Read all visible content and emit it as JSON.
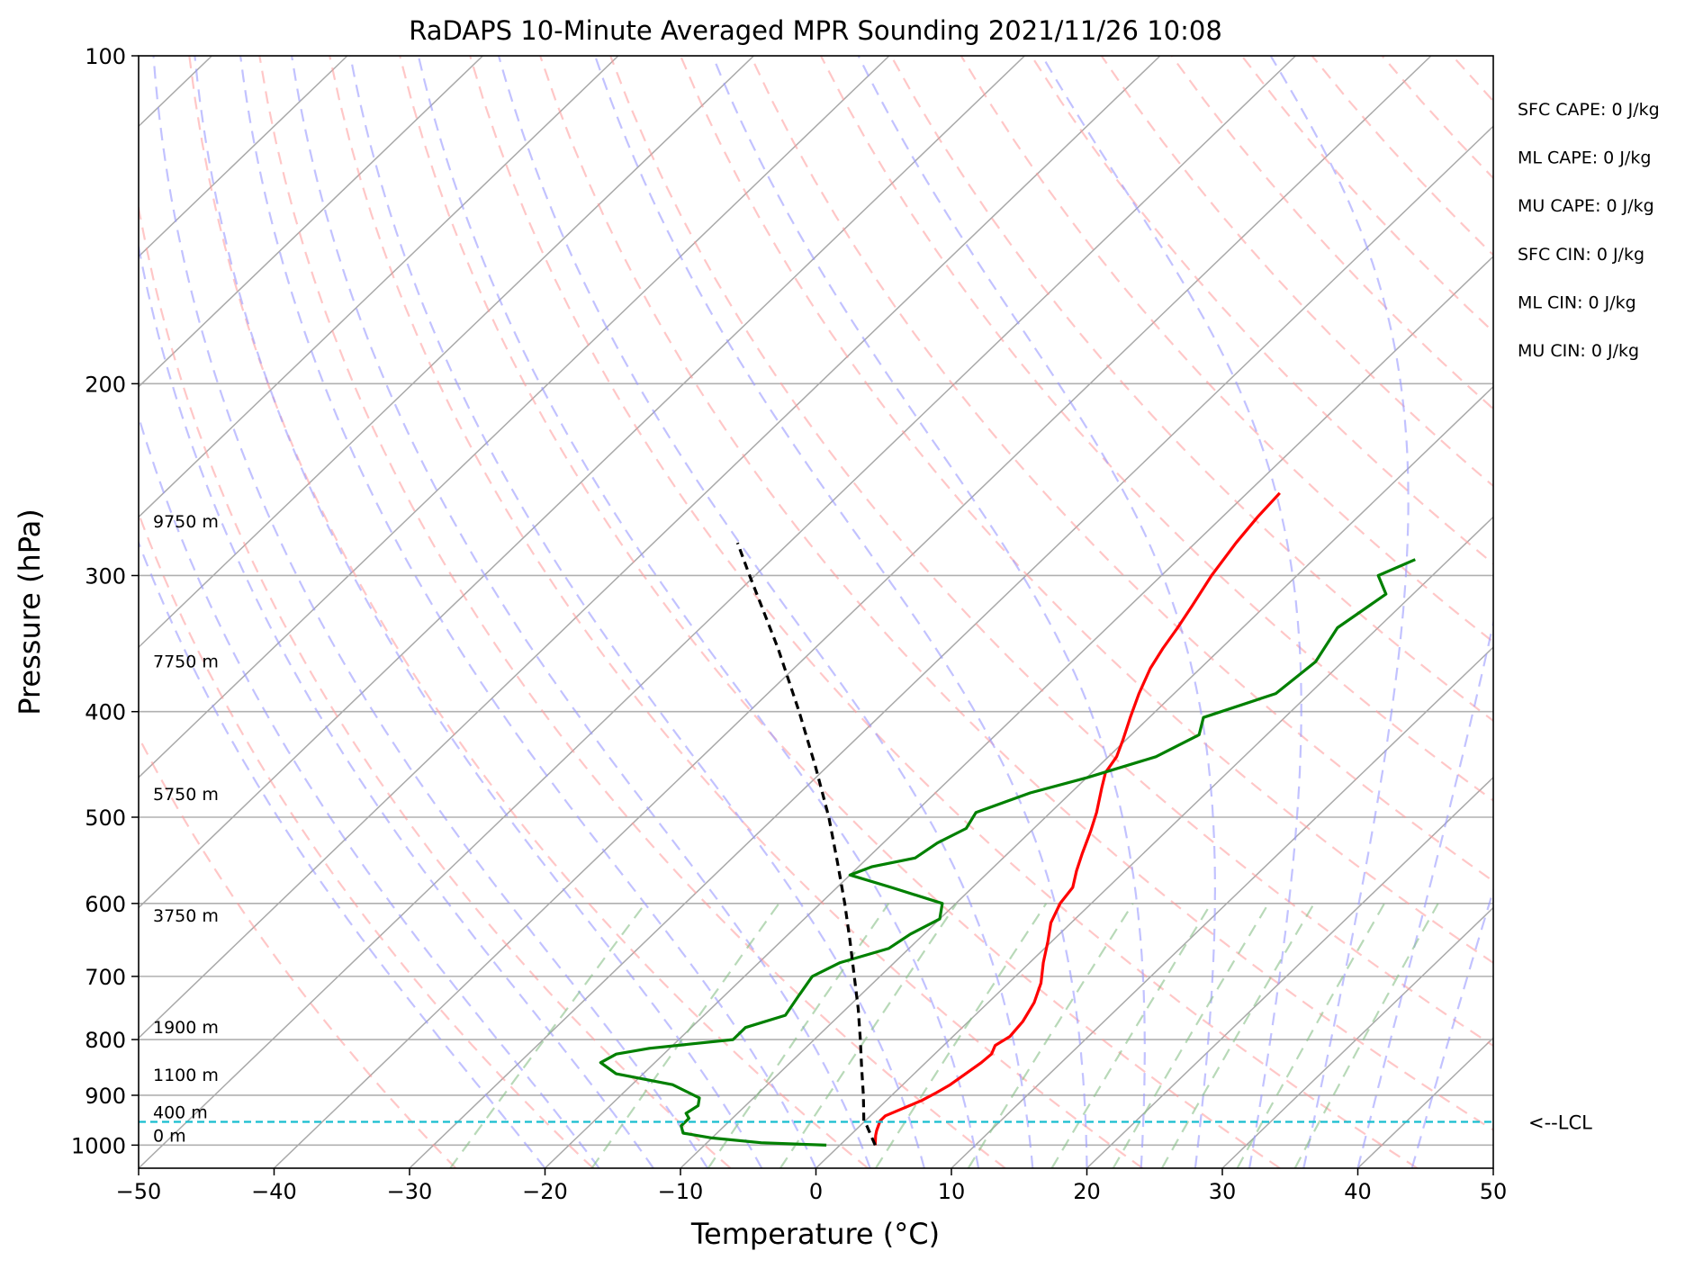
{
  "chart_data": {
    "type": "line",
    "title": "RaDAPS 10-Minute Averaged MPR Sounding 2021/11/26 10:08",
    "xlabel": "Temperature (°C)",
    "ylabel": "Pressure (hPa)",
    "xlim": [
      -50,
      50
    ],
    "ylim": [
      1050,
      100
    ],
    "y_scale": "log",
    "skew": "skew-T",
    "grid": true,
    "x_ticks": [
      -50,
      -40,
      -30,
      -20,
      -10,
      0,
      10,
      20,
      30,
      40,
      50
    ],
    "x_tick_labels": [
      "−50",
      "−40",
      "−30",
      "−20",
      "−10",
      "0",
      "10",
      "20",
      "30",
      "40",
      "50"
    ],
    "y_ticks": [
      1000,
      900,
      800,
      700,
      600,
      500,
      400,
      300,
      200,
      100
    ],
    "y_tick_labels": [
      "1000",
      "900",
      "800",
      "700",
      "600",
      "500",
      "400",
      "300",
      "200",
      "100"
    ],
    "series": [
      {
        "color": "#ff0000",
        "points": [
          [
            1000,
            2.6
          ],
          [
            980,
            1.9
          ],
          [
            970,
            1.6
          ],
          [
            950,
            1.1
          ],
          [
            940,
            1.1
          ],
          [
            930,
            1.6
          ],
          [
            910,
            2.6
          ],
          [
            895,
            3.1
          ],
          [
            880,
            3.5
          ],
          [
            860,
            3.8
          ],
          [
            840,
            4.1
          ],
          [
            825,
            4.2
          ],
          [
            810,
            3.8
          ],
          [
            795,
            4.2
          ],
          [
            770,
            4.0
          ],
          [
            740,
            3.4
          ],
          [
            710,
            2.4
          ],
          [
            680,
            1.0
          ],
          [
            650,
            -0.3
          ],
          [
            625,
            -1.5
          ],
          [
            600,
            -2.3
          ],
          [
            580,
            -2.6
          ],
          [
            560,
            -3.6
          ],
          [
            540,
            -4.5
          ],
          [
            515,
            -5.6
          ],
          [
            495,
            -6.6
          ],
          [
            470,
            -8.1
          ],
          [
            455,
            -9.0
          ],
          [
            440,
            -9.4
          ],
          [
            425,
            -10.2
          ],
          [
            405,
            -11.4
          ],
          [
            385,
            -12.6
          ],
          [
            365,
            -13.7
          ],
          [
            350,
            -14.3
          ],
          [
            335,
            -14.8
          ],
          [
            320,
            -15.4
          ],
          [
            300,
            -16.3
          ],
          [
            280,
            -17.0
          ],
          [
            265,
            -17.4
          ],
          [
            252,
            -17.6
          ]
        ]
      },
      {
        "color": "#008000",
        "points": [
          [
            1000,
            -1.0
          ],
          [
            995,
            -6.0
          ],
          [
            985,
            -10.0
          ],
          [
            975,
            -12.5
          ],
          [
            960,
            -13.2
          ],
          [
            945,
            -13.2
          ],
          [
            935,
            -13.8
          ],
          [
            920,
            -13.5
          ],
          [
            905,
            -14.0
          ],
          [
            880,
            -17.0
          ],
          [
            860,
            -22.0
          ],
          [
            840,
            -24.0
          ],
          [
            825,
            -23.5
          ],
          [
            815,
            -21.5
          ],
          [
            800,
            -16.0
          ],
          [
            780,
            -16.0
          ],
          [
            760,
            -14.0
          ],
          [
            730,
            -14.5
          ],
          [
            700,
            -15.0
          ],
          [
            680,
            -14.0
          ],
          [
            660,
            -11.5
          ],
          [
            640,
            -11.0
          ],
          [
            620,
            -10.0
          ],
          [
            600,
            -11.0
          ],
          [
            580,
            -16.0
          ],
          [
            565,
            -20.0
          ],
          [
            555,
            -19.0
          ],
          [
            545,
            -16.5
          ],
          [
            528,
            -16.0
          ],
          [
            512,
            -15.0
          ],
          [
            495,
            -15.5
          ],
          [
            475,
            -13.0
          ],
          [
            460,
            -10.0
          ],
          [
            440,
            -6.5
          ],
          [
            420,
            -5.0
          ],
          [
            405,
            -6.0
          ],
          [
            385,
            -2.5
          ],
          [
            360,
            -2.0
          ],
          [
            335,
            -3.0
          ],
          [
            312,
            -2.0
          ],
          [
            300,
            -4.0
          ],
          [
            290,
            -2.5
          ]
        ]
      },
      {
        "color": "#000000",
        "dashed": true,
        "points": [
          [
            1000,
            2.6
          ],
          [
            960,
            0.5
          ],
          [
            950,
            -0.1
          ],
          [
            900,
            -2.1
          ],
          [
            850,
            -4.3
          ],
          [
            800,
            -6.6
          ],
          [
            750,
            -9.1
          ],
          [
            700,
            -11.9
          ],
          [
            650,
            -14.9
          ],
          [
            600,
            -18.2
          ],
          [
            550,
            -21.9
          ],
          [
            500,
            -26.0
          ],
          [
            450,
            -30.8
          ],
          [
            400,
            -36.3
          ],
          [
            350,
            -42.7
          ],
          [
            300,
            -50.4
          ],
          [
            280,
            -53.8
          ]
        ]
      }
    ],
    "height_labels": [
      "9750 m",
      "7750 m",
      "5750 m",
      "3750 m",
      "1900 m",
      "1100 m",
      "400 m",
      "0 m"
    ],
    "lcl_label": "<--LCL",
    "lcl_pressure": 952,
    "indices": [
      {
        "label": "SFC CAPE: 0 J/kg"
      },
      {
        "label": "ML CAPE: 0 J/kg"
      },
      {
        "label": "MU CAPE: 0 J/kg"
      },
      {
        "label": "SFC CIN: 0 J/kg"
      },
      {
        "label": "ML CIN: 0 J/kg"
      },
      {
        "label": "MU CIN: 0 J/kg"
      }
    ],
    "colors": {
      "temperature": "#ff0000",
      "dewpoint": "#008000",
      "parcel": "#000000",
      "lcl": "#17becf",
      "dry_adiabats": "#ff9999",
      "moist_adiabats": "#9999ff",
      "mixing_ratio": "#88c088",
      "isotherms": "#a9a9a9",
      "grid": "#b0b0b0"
    }
  }
}
